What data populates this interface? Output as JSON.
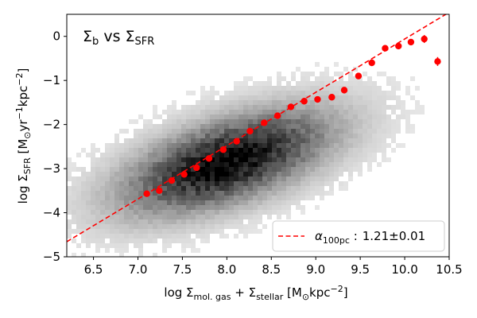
{
  "chart_data": {
    "type": "scatter",
    "title": {
      "main": "Σ",
      "sub1": "b",
      "mid": " vs Σ",
      "sub2": "SFR"
    },
    "xlabel": {
      "prefix": "log Σ",
      "sub1": "mol. gas",
      "mid1": " + Σ",
      "sub2": "stellar",
      "mid2": " [M",
      "sun": "⊙",
      "mid3": "kpc",
      "sup": "−2",
      "end": "]"
    },
    "ylabel": {
      "prefix": "log Σ",
      "sub": "SFR",
      "mid1": " [M",
      "sun": "⊙",
      "mid2": "yr",
      "sup1": "−1",
      "mid3": "kpc",
      "sup2": "−2",
      "end": "]"
    },
    "xlim": [
      6.2,
      10.5
    ],
    "ylim": [
      -5.0,
      0.5
    ],
    "xticks": [
      {
        "v": 6.5,
        "label": "6.5"
      },
      {
        "v": 7.0,
        "label": "7.0"
      },
      {
        "v": 7.5,
        "label": "7.5"
      },
      {
        "v": 8.0,
        "label": "8.0"
      },
      {
        "v": 8.5,
        "label": "8.5"
      },
      {
        "v": 9.0,
        "label": "9.0"
      },
      {
        "v": 9.5,
        "label": "9.5"
      },
      {
        "v": 10.0,
        "label": "10.0"
      },
      {
        "v": 10.5,
        "label": "10.5"
      }
    ],
    "yticks": [
      {
        "v": 0,
        "label": "0"
      },
      {
        "v": -1,
        "label": "−1"
      },
      {
        "v": -2,
        "label": "−2"
      },
      {
        "v": -3,
        "label": "−3"
      },
      {
        "v": -4,
        "label": "−4"
      },
      {
        "v": -5,
        "label": "−5"
      }
    ],
    "density_background": {
      "description": "2D histogram of pixels, grayscale",
      "center": [
        8.0,
        -2.85
      ],
      "sigma_along": 1.0,
      "sigma_across": 0.52,
      "angle_slope": 1.0
    },
    "binned_medians": {
      "name": "binned medians",
      "color": "#ff0000",
      "x": [
        7.1,
        7.24,
        7.38,
        7.52,
        7.66,
        7.8,
        7.96,
        8.11,
        8.26,
        8.42,
        8.57,
        8.72,
        8.87,
        9.02,
        9.18,
        9.32,
        9.48,
        9.63,
        9.78,
        9.93,
        10.07,
        10.22,
        10.37
      ],
      "y": [
        -3.57,
        -3.5,
        -3.27,
        -3.13,
        -2.98,
        -2.77,
        -2.57,
        -2.38,
        -2.15,
        -1.96,
        -1.8,
        -1.6,
        -1.47,
        -1.43,
        -1.38,
        -1.22,
        -0.9,
        -0.6,
        -0.27,
        -0.22,
        -0.13,
        -0.06,
        -0.57
      ],
      "yerr": [
        0.02,
        0.02,
        0.02,
        0.02,
        0.02,
        0.02,
        0.02,
        0.02,
        0.02,
        0.02,
        0.02,
        0.02,
        0.02,
        0.02,
        0.02,
        0.02,
        0.03,
        0.04,
        0.05,
        0.06,
        0.07,
        0.09,
        0.1
      ]
    },
    "fit_line": {
      "slope": 1.21,
      "intercept": -12.16,
      "color": "#ff0000",
      "style": "dashed"
    },
    "legend": {
      "position": "bottom-right",
      "alpha": "α",
      "alpha_sub": "100pc",
      "colon": " :",
      "value": "1.21±0.01"
    }
  }
}
